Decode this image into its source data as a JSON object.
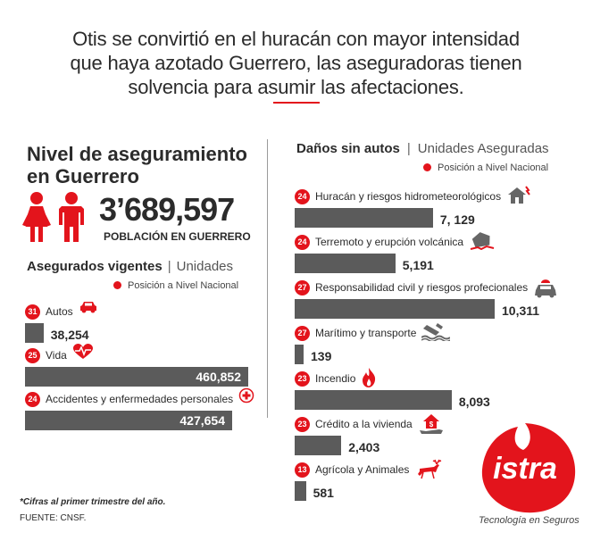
{
  "headline": {
    "line1": "Otis se convirtió en el huracán con mayor intensidad",
    "line2": "que haya azotado Guerrero, las aseguradoras tienen",
    "line3": "solvencia para asumir las afectaciones."
  },
  "left": {
    "title_line1": "Nivel de aseguramiento",
    "title_line2": "en Guerrero",
    "population_value": "3’689,597",
    "population_label": "POBLACIÓN EN GUERRERO",
    "section_title": "Asegurados vigentes",
    "section_unit": "Unidades",
    "legend": "Posición a Nivel Nacional"
  },
  "right": {
    "section_title": "Daños sin autos",
    "section_unit": "Unidades Aseguradas",
    "legend": "Posición a Nivel Nacional"
  },
  "chart_data": [
    {
      "type": "bar",
      "title": "Asegurados vigentes",
      "unit": "Unidades",
      "categories": [
        "Autos",
        "Vida",
        "Accidentes y enfermedades personales"
      ],
      "values": [
        38254,
        460852,
        427654
      ],
      "value_labels": [
        "38,254",
        "460,852",
        "427,654"
      ],
      "national_rank": [
        "31",
        "25",
        "24"
      ],
      "icons": [
        "car-icon",
        "heart-icon",
        "medical-cross-icon"
      ]
    },
    {
      "type": "bar",
      "title": "Daños sin autos",
      "unit": "Unidades Aseguradas",
      "categories": [
        "Huracán y riesgos hidrometeorológicos",
        "Terremoto y erupción volcánica",
        "Responsabilidad civil y riesgos profecionales",
        "Marítimo y transporte",
        "Incendio",
        "Crédito a la vivienda",
        "Agrícola y Animales"
      ],
      "values": [
        7129,
        5191,
        10311,
        139,
        8093,
        2403,
        581
      ],
      "value_labels": [
        "7, 129",
        "5,191",
        "10,311",
        "139",
        "8,093",
        "2,403",
        "581"
      ],
      "national_rank": [
        "24",
        "24",
        "27",
        "27",
        "23",
        "23",
        "13"
      ],
      "icons": [
        "storm-house-icon",
        "earthquake-house-icon",
        "car-accident-icon",
        "sinking-ship-icon",
        "fire-icon",
        "house-credit-icon",
        "deer-icon"
      ]
    }
  ],
  "footer": {
    "note": "*Cifras al primer trimestre del año.",
    "source": "FUENTE: CNSF."
  },
  "brand": {
    "logo_text": "istra",
    "tagline": "Tecnología en Seguros",
    "accent_color": "#e3141c",
    "bar_color": "#5b5b5b"
  }
}
